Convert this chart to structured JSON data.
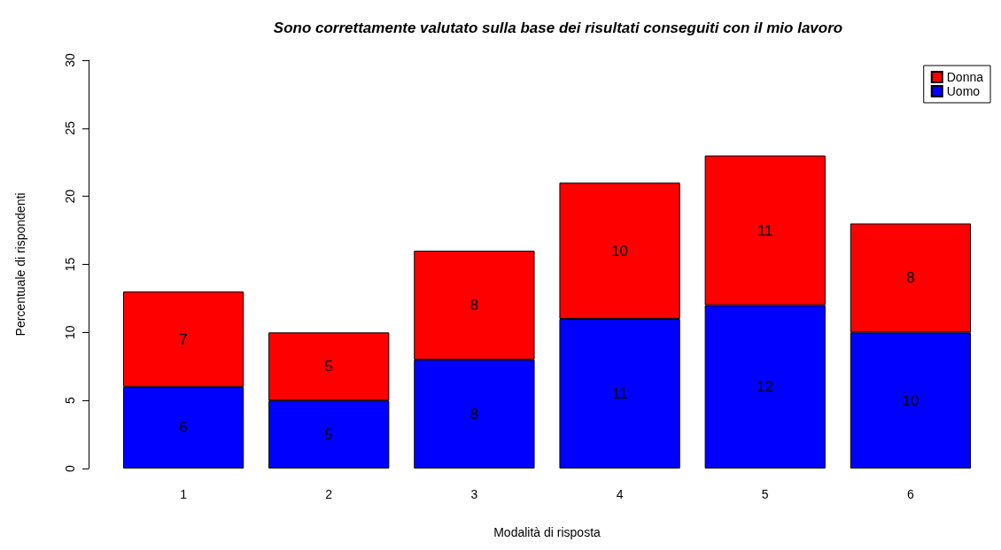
{
  "chart_data": {
    "type": "bar",
    "title": "Sono correttamente valutato sulla base dei risultati conseguiti con il mio lavoro",
    "xlabel": "Modalità di risposta",
    "ylabel": "Percentuale di rispondenti",
    "categories": [
      "1",
      "2",
      "3",
      "4",
      "5",
      "6"
    ],
    "series": [
      {
        "name": "Uomo",
        "color": "#0000ff",
        "values": [
          6,
          5,
          8,
          11,
          12,
          10
        ]
      },
      {
        "name": "Donna",
        "color": "#ff0000",
        "values": [
          7,
          5,
          8,
          10,
          11,
          8
        ]
      }
    ],
    "stacked": true,
    "ylim": [
      0,
      30
    ],
    "yticks": [
      0,
      5,
      10,
      15,
      20,
      25,
      30
    ],
    "grid": false,
    "legend": "top right",
    "data_labels": true
  }
}
